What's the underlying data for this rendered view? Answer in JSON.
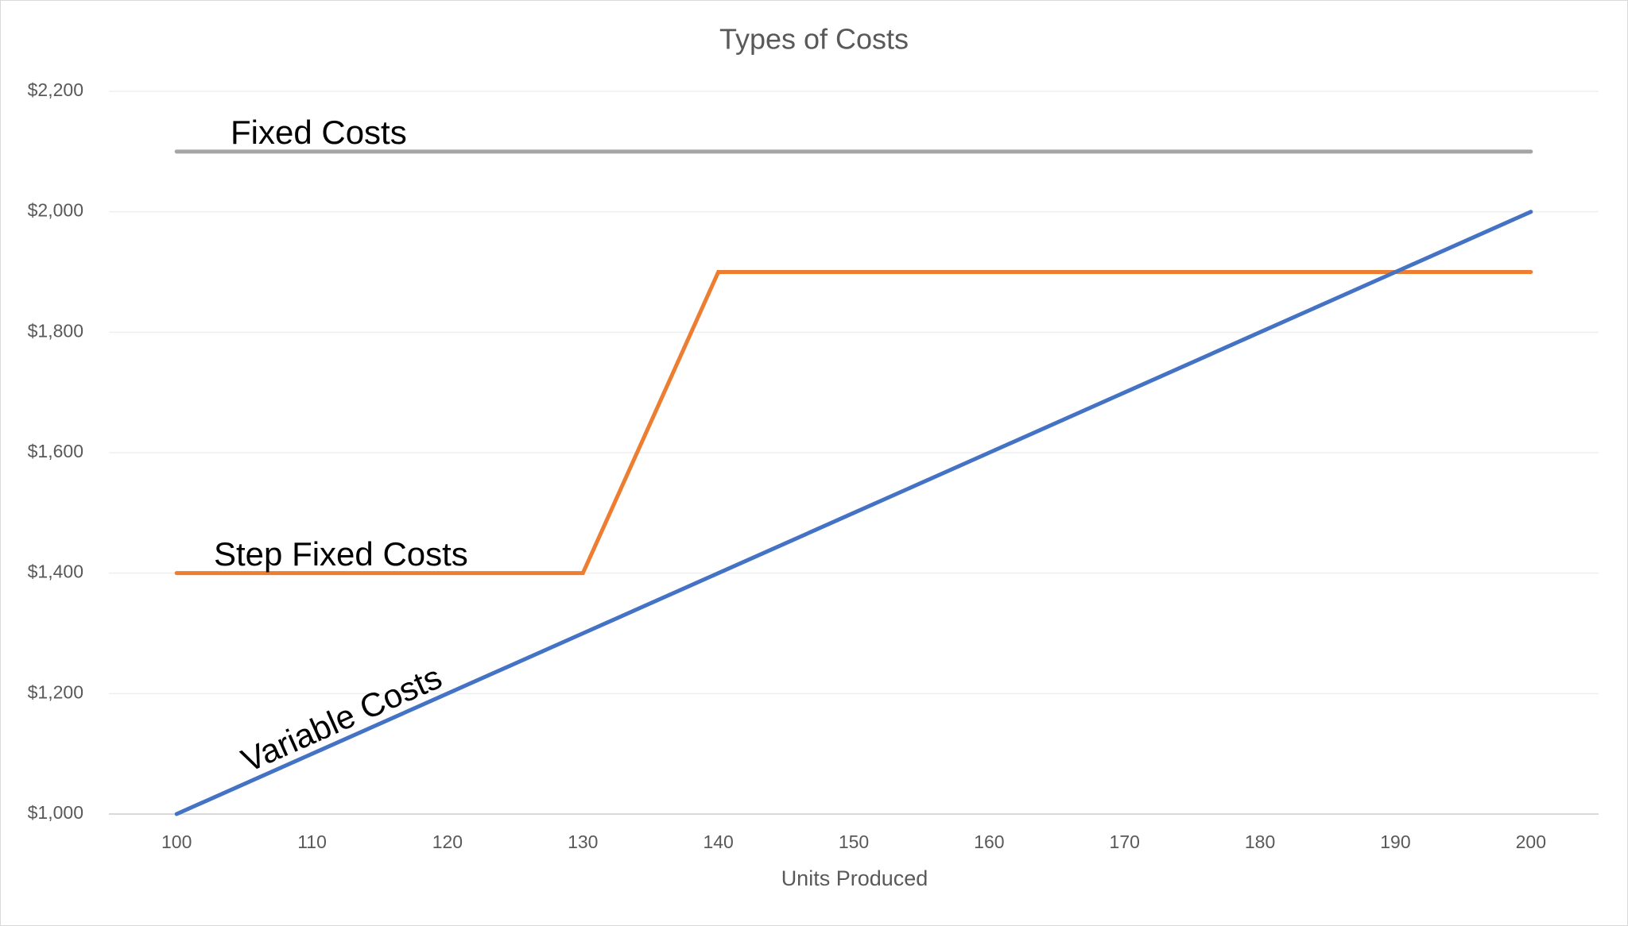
{
  "chart_data": {
    "type": "line",
    "title": "Types of Costs",
    "x_label": "Units Produced",
    "x": [
      100,
      110,
      120,
      130,
      140,
      150,
      160,
      170,
      180,
      190,
      200
    ],
    "xlim": [
      95,
      205
    ],
    "xticks": [
      100,
      110,
      120,
      130,
      140,
      150,
      160,
      170,
      180,
      190,
      200
    ],
    "ylim": [
      1000,
      2200
    ],
    "yticks": [
      {
        "value": 1000,
        "label": "$1,000"
      },
      {
        "value": 1200,
        "label": "$1,200"
      },
      {
        "value": 1400,
        "label": "$1,400"
      },
      {
        "value": 1600,
        "label": "$1,600"
      },
      {
        "value": 1800,
        "label": "$1,800"
      },
      {
        "value": 2000,
        "label": "$2,000"
      },
      {
        "value": 2200,
        "label": "$2,200"
      }
    ],
    "grid": true,
    "series": [
      {
        "name": "Fixed Costs",
        "color": "#a5a5a5",
        "values": [
          2100,
          2100,
          2100,
          2100,
          2100,
          2100,
          2100,
          2100,
          2100,
          2100,
          2100
        ]
      },
      {
        "name": "Step Fixed Costs",
        "color": "#ed7d31",
        "values": [
          1400,
          1400,
          1400,
          1400,
          1900,
          1900,
          1900,
          1900,
          1900,
          1900,
          1900
        ]
      },
      {
        "name": "Variable Costs",
        "color": "#4472c4",
        "values": [
          1000,
          1100,
          1200,
          1300,
          1400,
          1500,
          1600,
          1700,
          1800,
          1900,
          2000
        ]
      }
    ]
  }
}
